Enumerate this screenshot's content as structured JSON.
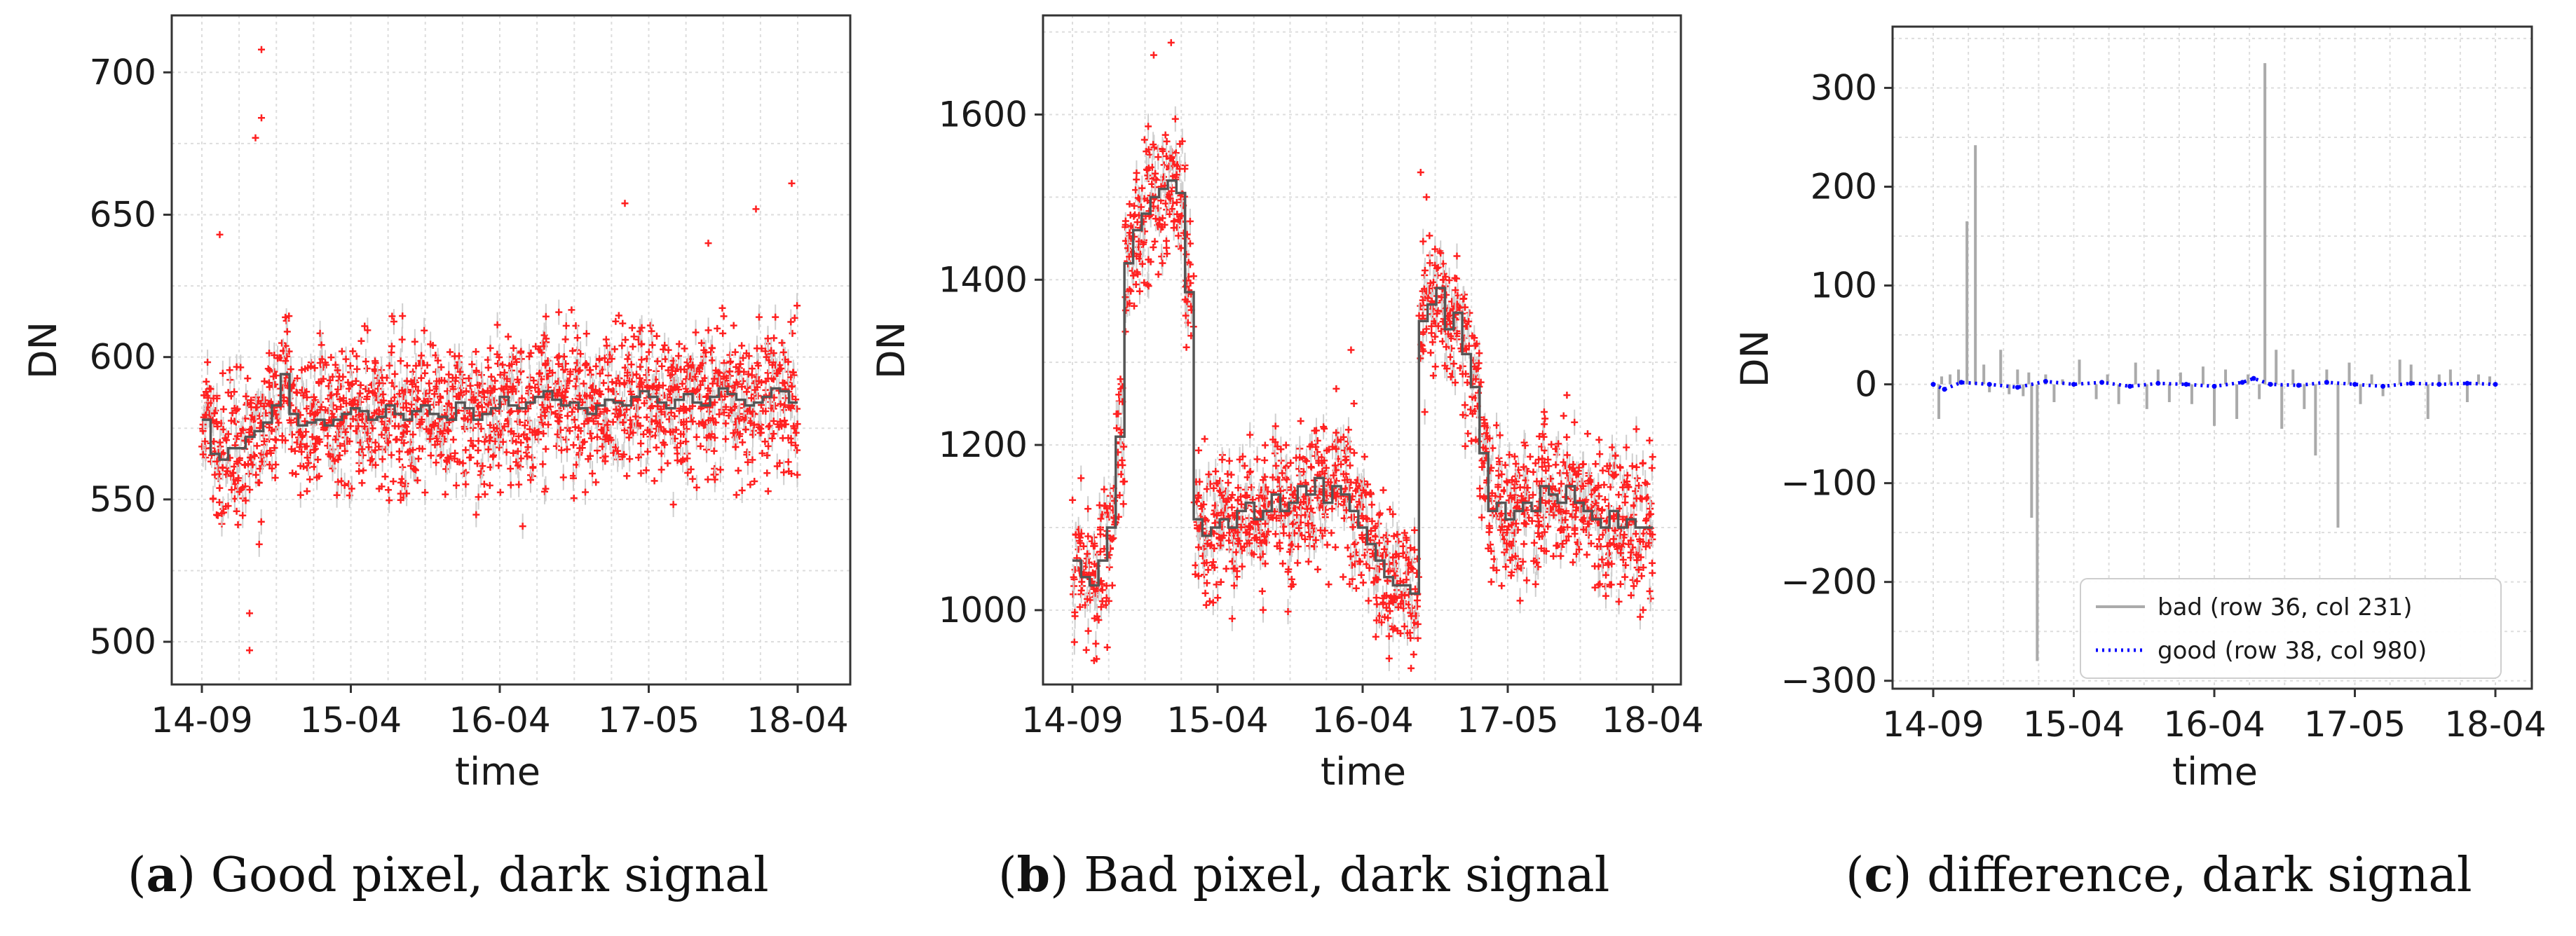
{
  "chart_data": [
    {
      "id": "a",
      "type": "scatter",
      "caption": {
        "letter": "a",
        "text": " Good pixel, dark signal"
      },
      "xlabel": "time",
      "ylabel": "DN",
      "xticks": [
        "14-09",
        "15-04",
        "16-04",
        "17-05",
        "18-04"
      ],
      "yticks": [
        500,
        550,
        600,
        650,
        700
      ],
      "ylim": [
        485,
        720
      ],
      "grid": true,
      "series": [
        {
          "kind": "step",
          "color": "#555555",
          "values": [
            578,
            566,
            564,
            568,
            568,
            572,
            574,
            577,
            583,
            594,
            580,
            576,
            577,
            578,
            576,
            578,
            580,
            582,
            581,
            578,
            579,
            583,
            580,
            578,
            581,
            583,
            580,
            579,
            578,
            584,
            582,
            578,
            580,
            582,
            586,
            583,
            582,
            584,
            586,
            588,
            585,
            583,
            584,
            582,
            580,
            583,
            585,
            584,
            583,
            586,
            588,
            586,
            584,
            582,
            585,
            587,
            584,
            583,
            586,
            589,
            587,
            585,
            583,
            584,
            586,
            589,
            588,
            584
          ]
        }
      ],
      "scatter_spread": 22,
      "outliers": [
        [
          0.1,
          708
        ],
        [
          0.1,
          684
        ],
        [
          0.09,
          677
        ],
        [
          0.03,
          643
        ],
        [
          0.08,
          510
        ],
        [
          0.08,
          497
        ],
        [
          0.99,
          661
        ],
        [
          0.71,
          654
        ],
        [
          0.93,
          652
        ],
        [
          0.85,
          640
        ]
      ]
    },
    {
      "id": "b",
      "type": "scatter",
      "caption": {
        "letter": "b",
        "text": " Bad pixel, dark signal"
      },
      "xlabel": "time",
      "ylabel": "DN",
      "xticks": [
        "14-09",
        "15-04",
        "16-04",
        "17-05",
        "18-04"
      ],
      "yticks": [
        1000,
        1200,
        1400,
        1600
      ],
      "ylim": [
        910,
        1720
      ],
      "grid": true,
      "series": [
        {
          "kind": "step",
          "color": "#555555",
          "values": [
            1060,
            1040,
            1030,
            1060,
            1100,
            1210,
            1420,
            1460,
            1480,
            1500,
            1510,
            1520,
            1505,
            1385,
            1110,
            1090,
            1100,
            1110,
            1100,
            1120,
            1130,
            1110,
            1120,
            1140,
            1120,
            1130,
            1150,
            1140,
            1160,
            1130,
            1150,
            1140,
            1120,
            1100,
            1080,
            1060,
            1040,
            1030,
            1030,
            1020,
            1350,
            1370,
            1390,
            1340,
            1360,
            1310,
            1270,
            1190,
            1120,
            1130,
            1110,
            1120,
            1130,
            1120,
            1150,
            1140,
            1130,
            1150,
            1130,
            1120,
            1110,
            1100,
            1120,
            1100,
            1110,
            1100,
            1100
          ]
        }
      ],
      "scatter_spread": 70,
      "outliers": [
        [
          0.17,
          1687
        ],
        [
          0.14,
          1672
        ],
        [
          0.6,
          1530
        ],
        [
          0.61,
          1500
        ],
        [
          0.48,
          1315
        ],
        [
          0.06,
          955
        ],
        [
          0.56,
          975
        ]
      ]
    },
    {
      "id": "c",
      "type": "bar",
      "caption": {
        "letter": "c",
        "text": " difference, dark signal"
      },
      "xlabel": "time",
      "ylabel": "DN",
      "xticks": [
        "14-09",
        "15-04",
        "16-04",
        "17-05",
        "18-04"
      ],
      "yticks": [
        -300,
        -200,
        -100,
        0,
        100,
        200,
        300
      ],
      "ylim": [
        -308,
        362
      ],
      "grid": true,
      "legend": {
        "position": "lower-right",
        "entries": [
          {
            "label": "bad (row 36, col 231)",
            "color": "#aaaaaa",
            "style": "solid"
          },
          {
            "label": "good (row 38, col 980)",
            "color": "#0000ff",
            "style": "dotted"
          }
        ]
      },
      "series": [
        {
          "name": "bad (row 36, col 231)",
          "kind": "stem",
          "color": "#aaaaaa",
          "x": [
            0.01,
            0.015,
            0.03,
            0.045,
            0.06,
            0.075,
            0.09,
            0.1,
            0.12,
            0.135,
            0.15,
            0.16,
            0.17,
            0.175,
            0.185,
            0.2,
            0.215,
            0.23,
            0.26,
            0.29,
            0.31,
            0.33,
            0.36,
            0.38,
            0.4,
            0.42,
            0.44,
            0.46,
            0.48,
            0.5,
            0.52,
            0.54,
            0.56,
            0.58,
            0.59,
            0.61,
            0.62,
            0.64,
            0.66,
            0.68,
            0.7,
            0.72,
            0.74,
            0.76,
            0.78,
            0.8,
            0.83,
            0.85,
            0.88,
            0.9,
            0.92,
            0.95,
            0.97,
            0.99
          ],
          "y": [
            -35,
            8,
            10,
            15,
            165,
            242,
            20,
            -8,
            35,
            -10,
            15,
            -12,
            12,
            -135,
            -280,
            10,
            -18,
            5,
            25,
            -15,
            10,
            -20,
            22,
            -25,
            15,
            -18,
            12,
            -20,
            18,
            -42,
            15,
            -35,
            10,
            -15,
            325,
            35,
            -45,
            15,
            -25,
            -72,
            15,
            -145,
            22,
            -20,
            10,
            -12,
            25,
            20,
            -35,
            10,
            15,
            -18,
            10,
            8
          ]
        },
        {
          "name": "good (row 38, col 980)",
          "kind": "dotted",
          "color": "#0000ff",
          "x": [
            0.0,
            0.02,
            0.05,
            0.1,
            0.15,
            0.2,
            0.25,
            0.3,
            0.35,
            0.4,
            0.45,
            0.5,
            0.55,
            0.57,
            0.6,
            0.65,
            0.7,
            0.75,
            0.8,
            0.85,
            0.9,
            0.95,
            1.0
          ],
          "y": [
            0,
            -5,
            2,
            0,
            -3,
            3,
            0,
            2,
            -2,
            1,
            0,
            -2,
            2,
            6,
            0,
            -1,
            2,
            0,
            -2,
            1,
            0,
            1,
            0
          ]
        }
      ]
    }
  ]
}
